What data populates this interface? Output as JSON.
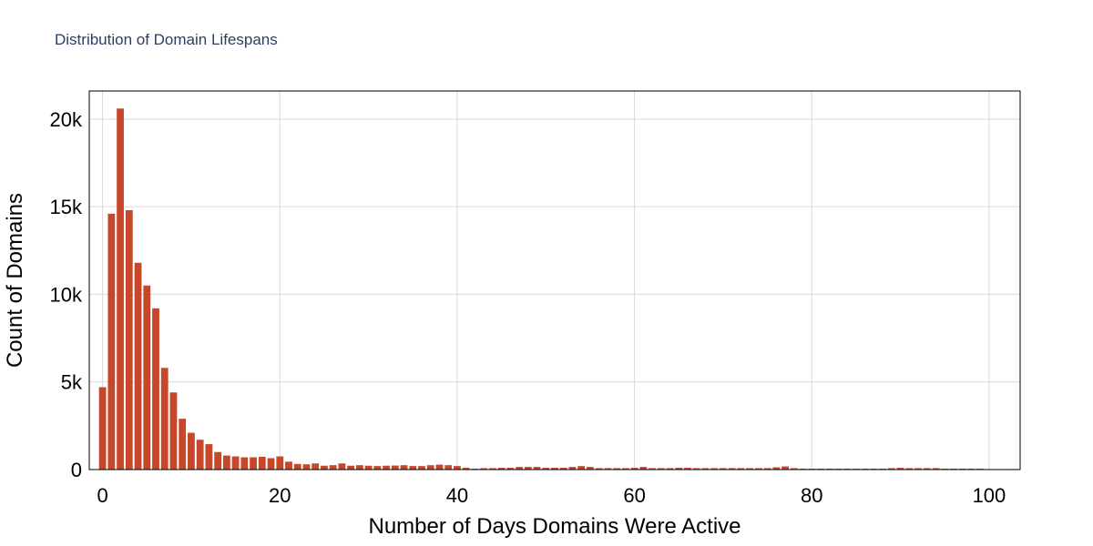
{
  "chart_data": {
    "type": "bar",
    "title": "Distribution of Domain Lifespans",
    "xlabel": "Number of Days Domains Were Active",
    "ylabel": "Count of Domains",
    "xlim": [
      -1.5,
      103.5
    ],
    "ylim": [
      0,
      21600
    ],
    "x_ticks": [
      0,
      20,
      40,
      60,
      80,
      100
    ],
    "x_tick_labels": [
      "0",
      "20",
      "40",
      "60",
      "80",
      "100"
    ],
    "y_ticks": [
      0,
      5000,
      10000,
      15000,
      20000
    ],
    "y_tick_labels": [
      "0",
      "5k",
      "10k",
      "15k",
      "20k"
    ],
    "grid": true,
    "bar_color": "#c7472b",
    "x": [
      0,
      1,
      2,
      3,
      4,
      5,
      6,
      7,
      8,
      9,
      10,
      11,
      12,
      13,
      14,
      15,
      16,
      17,
      18,
      19,
      20,
      21,
      22,
      23,
      24,
      25,
      26,
      27,
      28,
      29,
      30,
      31,
      32,
      33,
      34,
      35,
      36,
      37,
      38,
      39,
      40,
      41,
      42,
      43,
      44,
      45,
      46,
      47,
      48,
      49,
      50,
      51,
      52,
      53,
      54,
      55,
      56,
      57,
      58,
      59,
      60,
      61,
      62,
      63,
      64,
      65,
      66,
      67,
      68,
      69,
      70,
      71,
      72,
      73,
      74,
      75,
      76,
      77,
      78,
      79,
      80,
      81,
      82,
      83,
      84,
      85,
      86,
      87,
      88,
      89,
      90,
      91,
      92,
      93,
      94,
      95,
      96,
      97,
      98,
      99,
      100,
      101,
      102,
      103
    ],
    "values": [
      4700,
      14600,
      20600,
      14800,
      11800,
      10500,
      9200,
      5800,
      4400,
      2900,
      2100,
      1700,
      1450,
      1000,
      800,
      750,
      700,
      700,
      730,
      650,
      750,
      450,
      320,
      300,
      350,
      220,
      250,
      350,
      220,
      250,
      220,
      200,
      220,
      230,
      250,
      200,
      200,
      250,
      280,
      250,
      200,
      100,
      50,
      80,
      80,
      100,
      100,
      150,
      150,
      150,
      100,
      100,
      100,
      150,
      200,
      150,
      80,
      80,
      80,
      80,
      100,
      150,
      80,
      80,
      80,
      100,
      100,
      80,
      80,
      80,
      80,
      80,
      80,
      80,
      80,
      80,
      130,
      180,
      80,
      50,
      50,
      50,
      50,
      50,
      50,
      50,
      50,
      50,
      50,
      80,
      100,
      80,
      80,
      80,
      80,
      50,
      50,
      50,
      50,
      50,
      30,
      30,
      30,
      30
    ]
  }
}
